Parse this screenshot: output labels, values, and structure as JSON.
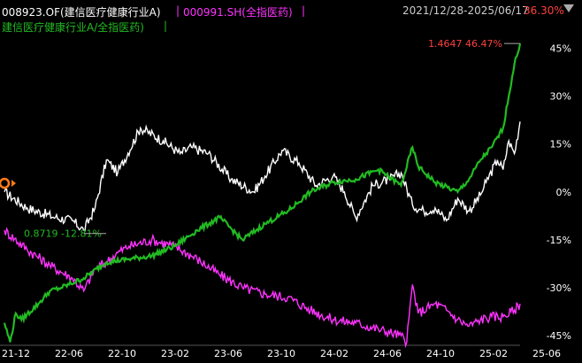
{
  "header": {
    "fund_label": "008923.OF(建信医疗健康行业A)",
    "sep1": "|",
    "index_label": "000991.SH(全指医药)",
    "sep2": "|",
    "ratio_label": "建信医疗健康行业A/全指医药)",
    "ratio_sep": "|",
    "date_range": "2021/12/28-2025/06/17",
    "range_change": "36.30%",
    "colors": {
      "fund": "#ffffff",
      "index": "#ff33ff",
      "ratio": "#22bb22",
      "range_change": "#ff4040"
    }
  },
  "chart_data": {
    "type": "line",
    "x_ticks": [
      "21-12",
      "22-06",
      "22-10",
      "23-02",
      "23-06",
      "23-10",
      "24-02",
      "24-06",
      "24-10",
      "25-02",
      "25-06"
    ],
    "y_ticks": [
      "45%",
      "30%",
      "15%",
      "0%",
      "-15%",
      "-30%",
      "-45%"
    ],
    "y_tick_values": [
      45,
      30,
      15,
      0,
      -15,
      -30,
      -45
    ],
    "ylim": [
      -48,
      49
    ],
    "grid": false,
    "series": [
      {
        "name": "008923.OF(建信医疗健康行业A)",
        "color": "#ffffff",
        "points": [
          [
            0,
            0
          ],
          [
            4,
            -5
          ],
          [
            9,
            -8
          ],
          [
            12,
            -9
          ],
          [
            14,
            -12
          ],
          [
            16,
            -5
          ],
          [
            18,
            10
          ],
          [
            20,
            6
          ],
          [
            24,
            20
          ],
          [
            28,
            16
          ],
          [
            31,
            12
          ],
          [
            33,
            14
          ],
          [
            36,
            12
          ],
          [
            40,
            4
          ],
          [
            44,
            0
          ],
          [
            46,
            5
          ],
          [
            49,
            13
          ],
          [
            52,
            9
          ],
          [
            55,
            2
          ],
          [
            58,
            5
          ],
          [
            60,
            0
          ],
          [
            62,
            -8
          ],
          [
            65,
            2
          ],
          [
            68,
            4
          ],
          [
            70,
            6
          ],
          [
            72,
            -4
          ],
          [
            74,
            -6
          ],
          [
            76,
            -5
          ],
          [
            78,
            -9
          ],
          [
            80,
            -2
          ],
          [
            82,
            -6
          ],
          [
            84,
            -1
          ],
          [
            85,
            3
          ],
          [
            87,
            10
          ],
          [
            88,
            7
          ],
          [
            89,
            16
          ],
          [
            90,
            12
          ],
          [
            91,
            22
          ]
        ]
      },
      {
        "name": "000991.SH(全指医药)",
        "color": "#ff33ff",
        "points": [
          [
            0,
            -12
          ],
          [
            4,
            -18
          ],
          [
            8,
            -23
          ],
          [
            12,
            -27
          ],
          [
            14,
            -31
          ],
          [
            16,
            -24
          ],
          [
            18,
            -22
          ],
          [
            20,
            -19
          ],
          [
            22,
            -17
          ],
          [
            26,
            -15
          ],
          [
            30,
            -17
          ],
          [
            34,
            -21
          ],
          [
            38,
            -26
          ],
          [
            42,
            -30
          ],
          [
            46,
            -32
          ],
          [
            50,
            -33
          ],
          [
            54,
            -37
          ],
          [
            58,
            -40
          ],
          [
            62,
            -41
          ],
          [
            66,
            -43
          ],
          [
            70,
            -45
          ],
          [
            71,
            -47
          ],
          [
            72,
            -29
          ],
          [
            73,
            -38
          ],
          [
            76,
            -35
          ],
          [
            78,
            -37
          ],
          [
            80,
            -40
          ],
          [
            82,
            -42
          ],
          [
            84,
            -40
          ],
          [
            86,
            -39
          ],
          [
            88,
            -39
          ],
          [
            90,
            -37
          ],
          [
            91,
            -35
          ]
        ]
      },
      {
        "name": "建信医疗健康行业A/全指医药",
        "color": "#22bb22",
        "points": [
          [
            0,
            -41
          ],
          [
            1,
            -47
          ],
          [
            2,
            -38
          ],
          [
            3,
            -40
          ],
          [
            6,
            -35
          ],
          [
            8,
            -31
          ],
          [
            10,
            -30
          ],
          [
            14,
            -27
          ],
          [
            18,
            -22
          ],
          [
            22,
            -21
          ],
          [
            26,
            -20
          ],
          [
            30,
            -17
          ],
          [
            34,
            -12
          ],
          [
            38,
            -8
          ],
          [
            42,
            -15
          ],
          [
            46,
            -10
          ],
          [
            50,
            -6
          ],
          [
            54,
            0
          ],
          [
            58,
            3
          ],
          [
            62,
            4
          ],
          [
            66,
            7
          ],
          [
            70,
            2
          ],
          [
            72,
            14
          ],
          [
            73,
            8
          ],
          [
            76,
            3
          ],
          [
            80,
            0
          ],
          [
            82,
            4
          ],
          [
            84,
            10
          ],
          [
            86,
            14
          ],
          [
            88,
            20
          ],
          [
            89,
            30
          ],
          [
            90,
            40
          ],
          [
            91,
            46.47
          ]
        ]
      }
    ],
    "start_marker_value": 0,
    "left_annotation": {
      "text": "0.8719 -12.81%",
      "color": "#22bb22"
    },
    "right_annotation": {
      "text": "1.4647 46.47%",
      "color": "#ff4040"
    }
  }
}
